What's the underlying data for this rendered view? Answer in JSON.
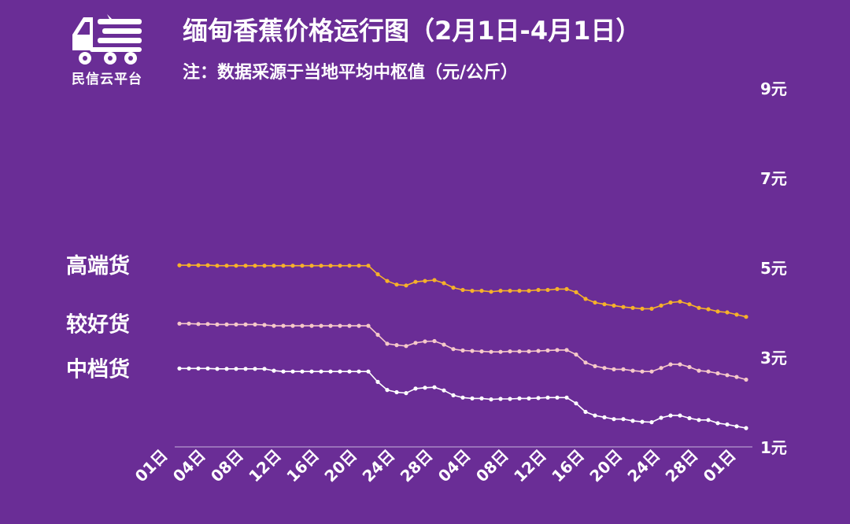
{
  "header": {
    "logo_text": "民信云平台",
    "title": "缅甸香蕉价格运行图（2月1日-4月1日）",
    "subtitle": "注：数据采源于当地平均中枢值（元/公斤）"
  },
  "chart_data": {
    "type": "line",
    "title": "缅甸香蕉价格运行图（2月1日-4月1日）",
    "subtitle": "注：数据采源于当地平均中枢值（元/公斤）",
    "ylim": [
      1,
      9
    ],
    "y_ticks": [
      "1元",
      "3元",
      "5元",
      "7元",
      "9元"
    ],
    "y_tick_values": [
      1,
      3,
      5,
      7,
      9
    ],
    "y_axis_side": "right",
    "grid": false,
    "x_tick_labels": [
      "01日",
      "04日",
      "08日",
      "12日",
      "16日",
      "20日",
      "24日",
      "28日",
      "04日",
      "08日",
      "12日",
      "16日",
      "20日",
      "24日",
      "28日",
      "01日"
    ],
    "colors": {
      "background": "#6a2d96",
      "高端货": "#f6b12a",
      "较好货": "#f6c9c9",
      "中档货": "#ffffff",
      "axis": "#c8b3dc"
    },
    "series": [
      {
        "name": "高端货",
        "values": [
          5.05,
          5.05,
          5.05,
          5.05,
          5.04,
          5.04,
          5.04,
          5.04,
          5.04,
          5.04,
          5.04,
          5.04,
          5.04,
          5.04,
          5.04,
          5.04,
          5.04,
          5.04,
          5.04,
          5.04,
          5.04,
          4.85,
          4.7,
          4.62,
          4.6,
          4.68,
          4.7,
          4.72,
          4.65,
          4.55,
          4.5,
          4.48,
          4.48,
          4.46,
          4.48,
          4.48,
          4.48,
          4.48,
          4.5,
          4.5,
          4.52,
          4.52,
          4.45,
          4.3,
          4.22,
          4.18,
          4.15,
          4.12,
          4.1,
          4.08,
          4.08,
          4.15,
          4.22,
          4.24,
          4.18,
          4.1,
          4.07,
          4.02,
          4.0,
          3.95,
          3.9
        ]
      },
      {
        "name": "较好货",
        "values": [
          3.75,
          3.75,
          3.74,
          3.74,
          3.73,
          3.73,
          3.73,
          3.73,
          3.73,
          3.72,
          3.7,
          3.7,
          3.7,
          3.7,
          3.7,
          3.7,
          3.7,
          3.7,
          3.7,
          3.7,
          3.7,
          3.5,
          3.3,
          3.27,
          3.25,
          3.32,
          3.35,
          3.36,
          3.28,
          3.18,
          3.15,
          3.14,
          3.13,
          3.12,
          3.12,
          3.13,
          3.13,
          3.13,
          3.14,
          3.15,
          3.16,
          3.16,
          3.06,
          2.88,
          2.8,
          2.76,
          2.73,
          2.73,
          2.7,
          2.68,
          2.68,
          2.76,
          2.84,
          2.84,
          2.78,
          2.7,
          2.68,
          2.64,
          2.6,
          2.56,
          2.5
        ]
      },
      {
        "name": "中档货",
        "values": [
          2.75,
          2.75,
          2.75,
          2.75,
          2.74,
          2.74,
          2.74,
          2.74,
          2.74,
          2.74,
          2.7,
          2.68,
          2.68,
          2.68,
          2.68,
          2.68,
          2.68,
          2.68,
          2.68,
          2.68,
          2.68,
          2.45,
          2.27,
          2.22,
          2.2,
          2.3,
          2.32,
          2.33,
          2.26,
          2.15,
          2.1,
          2.08,
          2.08,
          2.06,
          2.07,
          2.07,
          2.08,
          2.08,
          2.09,
          2.1,
          2.1,
          2.1,
          1.97,
          1.78,
          1.7,
          1.66,
          1.62,
          1.62,
          1.58,
          1.56,
          1.55,
          1.65,
          1.7,
          1.7,
          1.64,
          1.6,
          1.6,
          1.53,
          1.5,
          1.46,
          1.42
        ]
      }
    ]
  }
}
